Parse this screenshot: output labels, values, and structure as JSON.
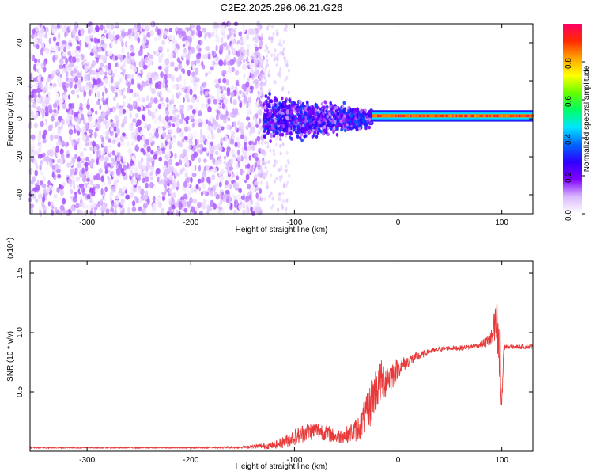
{
  "title": "C2E2.2025.296.06.21.G26",
  "chart_data": [
    {
      "type": "heatmap",
      "xlabel": "Height of straight line (km)",
      "ylabel": "Frequency (Hz)",
      "xlim": [
        -355,
        130
      ],
      "ylim": [
        -50,
        50
      ],
      "xticks": [
        -300,
        -200,
        -100,
        0,
        100
      ],
      "yticks": [
        -40,
        -20,
        0,
        20,
        40
      ],
      "colorbar": {
        "label": "Normalized spectral amplitude",
        "range": [
          0,
          1
        ],
        "ticks": [
          "0.0",
          "0.2",
          "0.4",
          "0.6",
          "0.8"
        ],
        "tick_values": [
          0,
          0.2,
          0.4,
          0.6,
          0.8
        ],
        "colors": [
          "#ffffff",
          "#d9b8ff",
          "#8000ff",
          "#2d00ff",
          "#0066ff",
          "#00e5ff",
          "#00ff66",
          "#66ff00",
          "#ffff00",
          "#ffa500",
          "#ff2a00",
          "#ff0066"
        ]
      },
      "description_of_regions": [
        {
          "x_range": [
            -355,
            -130
          ],
          "freq_range": [
            -50,
            50
          ],
          "amplitude": [
            0.0,
            0.15
          ]
        },
        {
          "x_range": [
            -130,
            -25
          ],
          "freq_range": [
            -15,
            15
          ],
          "amplitude": [
            0.1,
            0.35
          ]
        },
        {
          "x_range": [
            -25,
            130
          ],
          "freq_center": 1.5,
          "freq_halfwidth": 3,
          "amplitude": [
            0.7,
            1.0
          ]
        }
      ]
    },
    {
      "type": "line",
      "xlabel": "Height of straight line (km)",
      "ylabel": "SNR (10 * v/v)",
      "y_multiplier": "(x10⁴)",
      "xlim": [
        -355,
        130
      ],
      "ylim": [
        0,
        1.6
      ],
      "xticks": [
        -300,
        -200,
        -100,
        0,
        100
      ],
      "yticks": [
        "0.5",
        "1.0",
        "1.5"
      ],
      "ytick_values": [
        0.5,
        1.0,
        1.5
      ],
      "color": "#e83a3a",
      "series": [
        {
          "x": [
            -355,
            -300,
            -250,
            -200,
            -150,
            -120,
            -110,
            -100,
            -90,
            -80,
            -70,
            -60,
            -50,
            -40,
            -30,
            -25,
            -20,
            -15,
            -10,
            -5,
            0,
            10,
            20,
            30,
            40,
            50,
            60,
            70,
            80,
            85,
            90,
            95,
            98,
            100,
            102,
            105,
            110,
            120,
            130
          ],
          "y": [
            0.03,
            0.03,
            0.03,
            0.03,
            0.035,
            0.05,
            0.08,
            0.12,
            0.16,
            0.18,
            0.16,
            0.12,
            0.14,
            0.18,
            0.3,
            0.45,
            0.55,
            0.6,
            0.62,
            0.65,
            0.7,
            0.76,
            0.8,
            0.84,
            0.86,
            0.87,
            0.87,
            0.88,
            0.9,
            0.92,
            0.95,
            1.05,
            0.75,
            0.4,
            0.88,
            0.88,
            0.88,
            0.88,
            0.88
          ],
          "noise": [
            0.005,
            0.005,
            0.005,
            0.005,
            0.01,
            0.03,
            0.05,
            0.07,
            0.08,
            0.08,
            0.07,
            0.06,
            0.07,
            0.1,
            0.18,
            0.2,
            0.2,
            0.18,
            0.15,
            0.12,
            0.08,
            0.05,
            0.04,
            0.02,
            0.02,
            0.02,
            0.02,
            0.02,
            0.03,
            0.05,
            0.08,
            0.25,
            0.4,
            0.35,
            0.03,
            0.02,
            0.02,
            0.02,
            0.02
          ]
        }
      ]
    }
  ]
}
